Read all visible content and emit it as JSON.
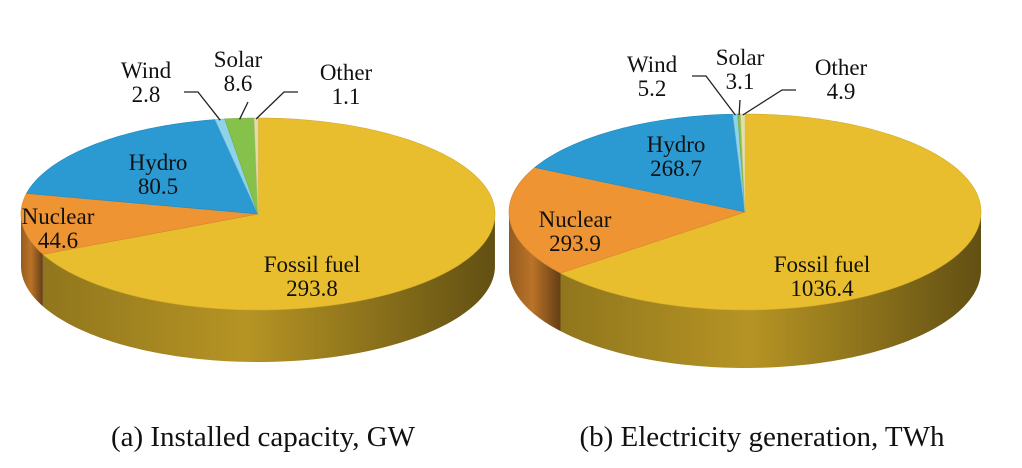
{
  "chart_data": [
    {
      "type": "pie",
      "caption": "(a) Installed capacity, GW",
      "slices": [
        {
          "label": "Fossil fuel",
          "value": 293.8,
          "display": "293.8",
          "color": "#E9BE2E"
        },
        {
          "label": "Nuclear",
          "value": 44.6,
          "display": "44.6",
          "color": "#EE9433"
        },
        {
          "label": "Hydro",
          "value": 80.5,
          "display": "80.5",
          "color": "#2B9AD3"
        },
        {
          "label": "Wind",
          "value": 2.8,
          "display": "2.8",
          "color": "#8ED3EA"
        },
        {
          "label": "Solar",
          "value": 8.6,
          "display": "8.6",
          "color": "#86C14B"
        },
        {
          "label": "Other",
          "value": 1.1,
          "display": "1.1",
          "color": "#E5DEA8"
        }
      ]
    },
    {
      "type": "pie",
      "caption": "(b) Electricity generation, TWh",
      "slices": [
        {
          "label": "Fossil fuel",
          "value": 1036.4,
          "display": "1036.4",
          "color": "#E9BE2E"
        },
        {
          "label": "Nuclear",
          "value": 293.9,
          "display": "293.9",
          "color": "#EE9433"
        },
        {
          "label": "Hydro",
          "value": 268.7,
          "display": "268.7",
          "color": "#2B9AD3"
        },
        {
          "label": "Wind",
          "value": 5.2,
          "display": "5.2",
          "color": "#8ED3EA"
        },
        {
          "label": "Solar",
          "value": 3.1,
          "display": "3.1",
          "color": "#86C14B"
        },
        {
          "label": "Other",
          "value": 4.9,
          "display": "4.9",
          "color": "#E5DEA8"
        }
      ]
    }
  ]
}
